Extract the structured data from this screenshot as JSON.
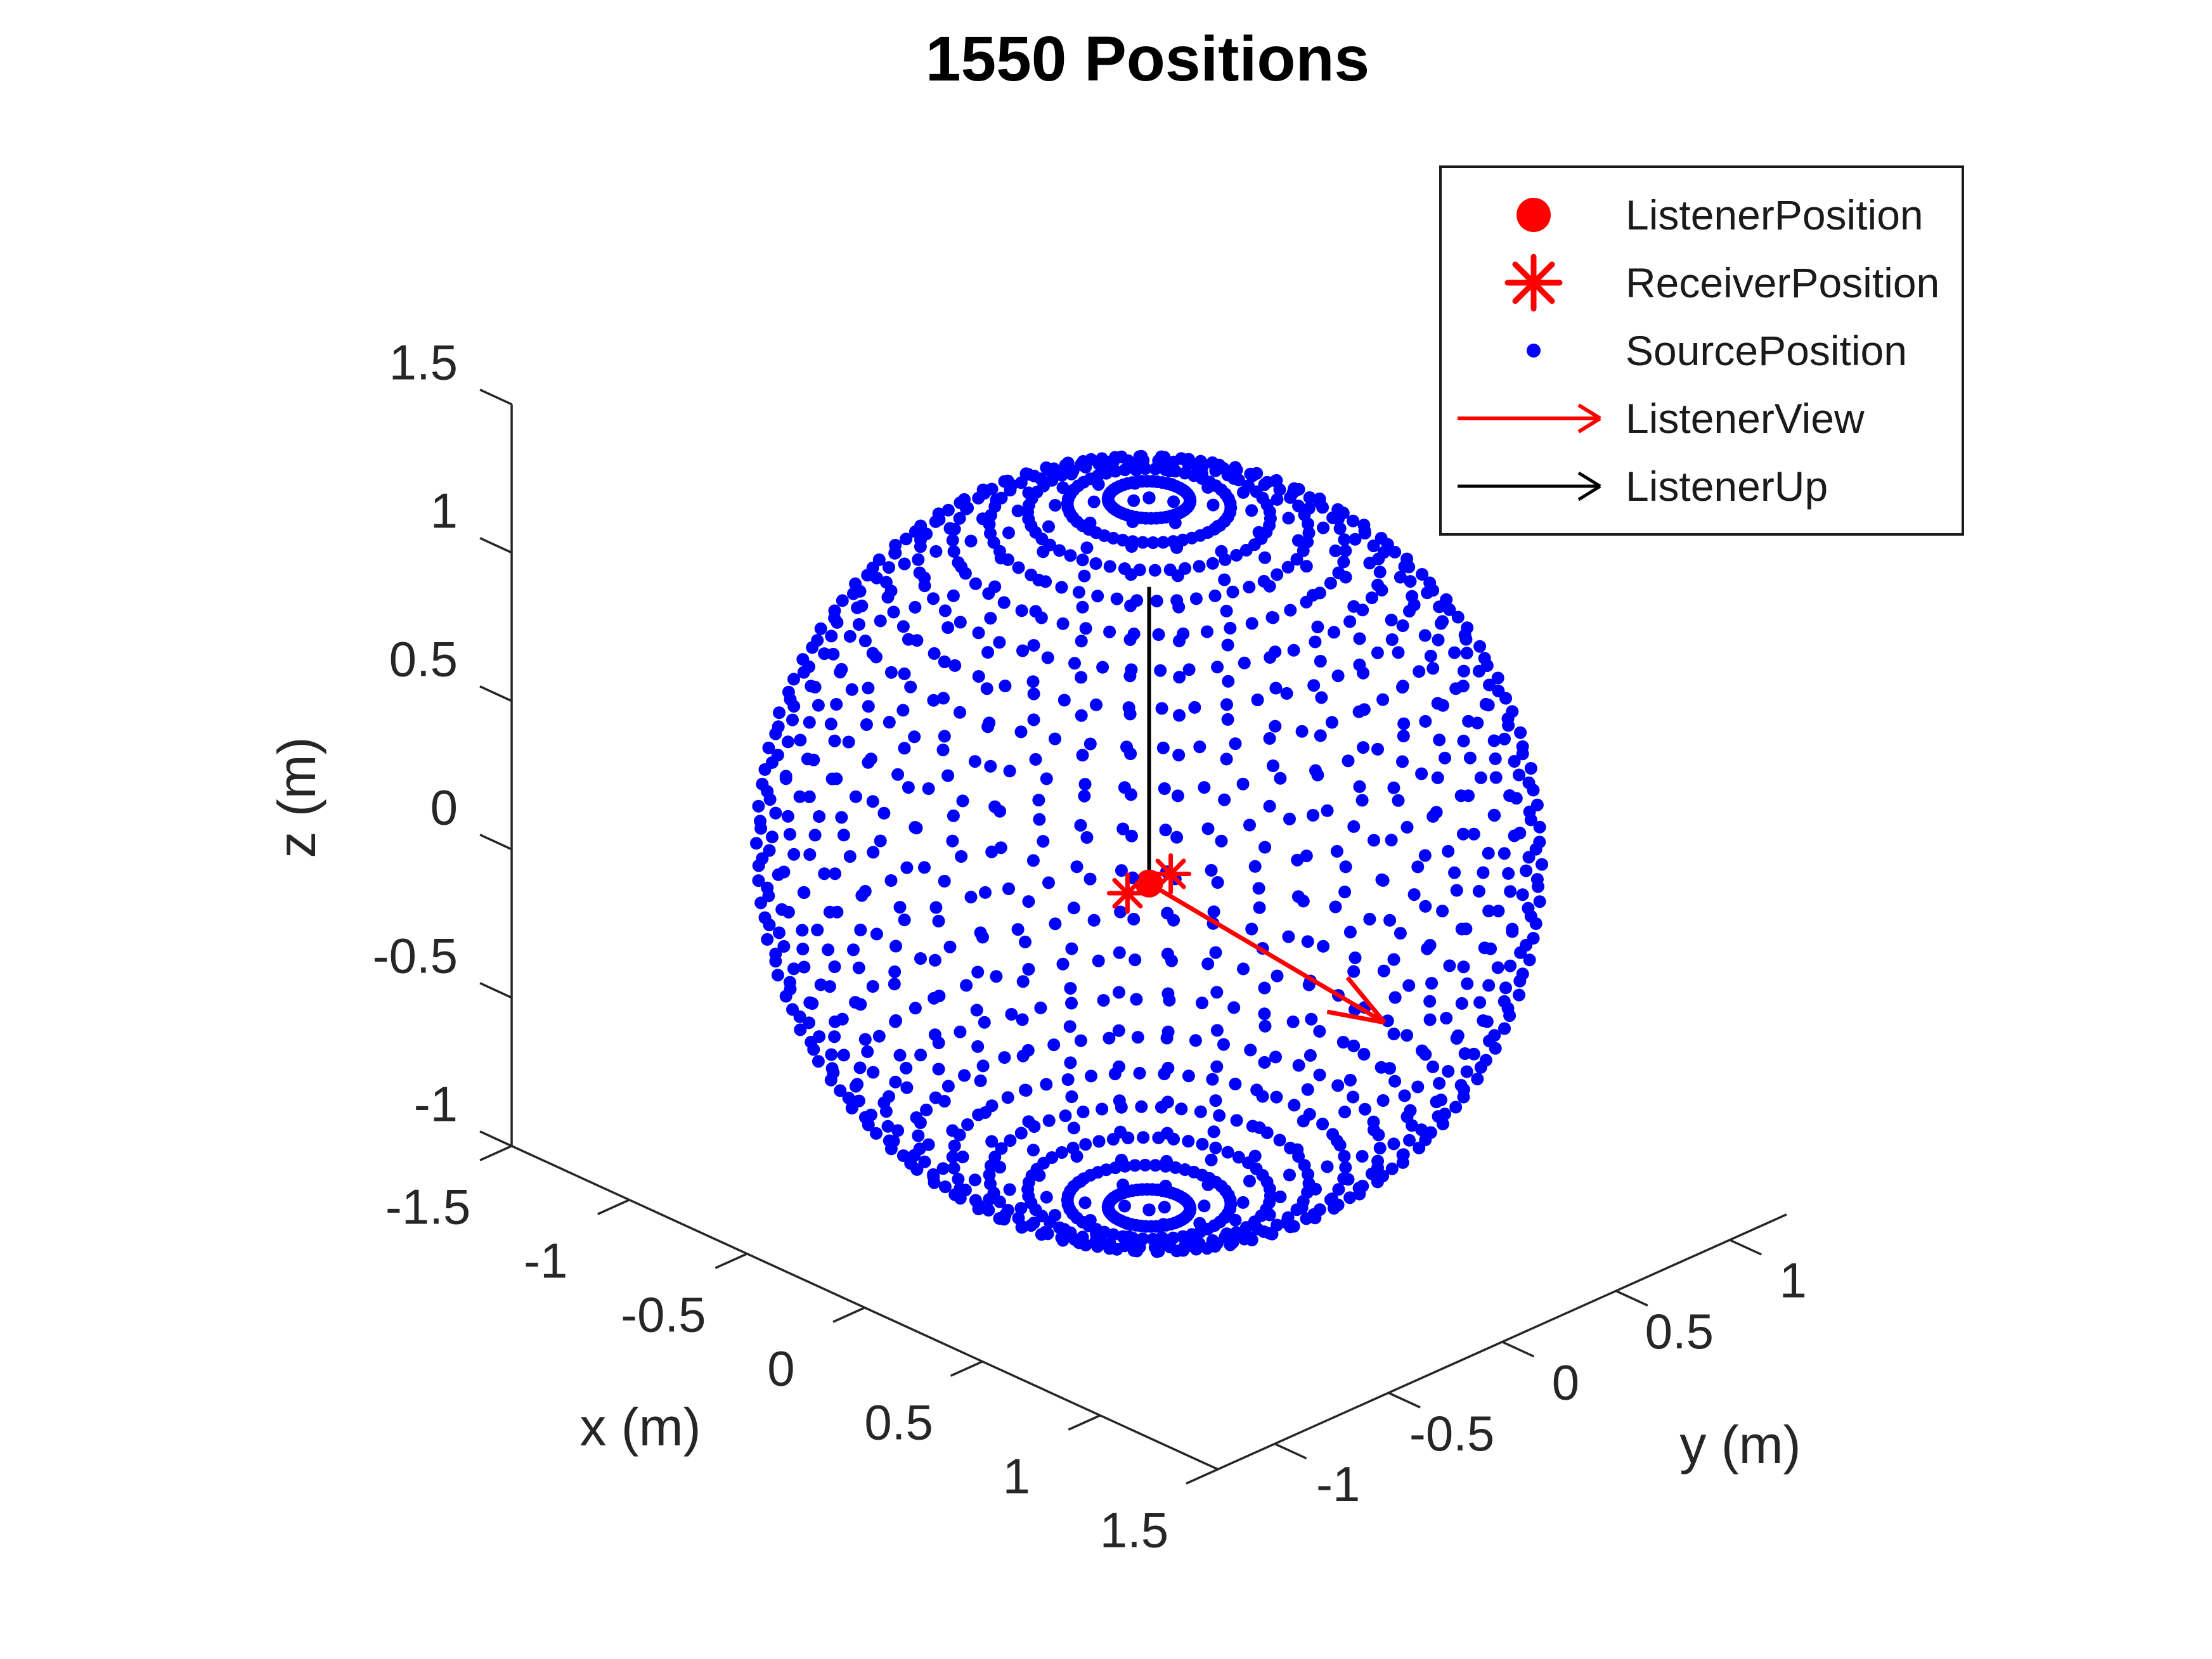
{
  "title": "1550 Positions",
  "colors": {
    "source": "#0000ff",
    "listener": "#ff0000",
    "receiver": "#ff0000",
    "view_arrow": "#ff0000",
    "up_arrow": "#000000",
    "axis": "#262626",
    "background": "#ffffff"
  },
  "chart_data": {
    "type": "scatter",
    "projection": "3d",
    "title": "1550 Positions",
    "grid": false,
    "legend_position": "top-right",
    "axes": {
      "x": {
        "label": "x (m)",
        "range": [
          -1.5,
          1.5
        ],
        "ticks": [
          -1.5,
          -1,
          -0.5,
          0,
          0.5,
          1,
          1.5
        ]
      },
      "y": {
        "label": "y (m)",
        "range": [
          -1.25,
          1.25
        ],
        "ticks": [
          -1,
          -0.5,
          0,
          0.5,
          1
        ]
      },
      "z": {
        "label": "z (m)",
        "range": [
          -1,
          1.5
        ],
        "ticks": [
          1.5,
          1,
          0.5,
          0,
          -0.5,
          -1
        ]
      }
    },
    "legend": {
      "items": [
        {
          "label": "ListenerPosition",
          "marker": "filled-circle",
          "color": "#ff0000"
        },
        {
          "label": "ReceiverPosition",
          "marker": "asterisk",
          "color": "#ff0000"
        },
        {
          "label": "SourcePosition",
          "marker": "dot",
          "color": "#0000ff"
        },
        {
          "label": "ListenerView",
          "marker": "arrow",
          "color": "#ff0000"
        },
        {
          "label": "ListenerUp",
          "marker": "arrow",
          "color": "#000000"
        }
      ]
    },
    "series": {
      "source_positions": {
        "count": 1550,
        "arrangement": "sphere-grid",
        "radius_m": 1.2,
        "center_m": [
          0,
          0,
          0.1
        ],
        "elevation_rings": 31,
        "points_per_ring": 50,
        "color": "#0000ff",
        "marker": "dot"
      },
      "listener_position": {
        "xyz_m": [
          0,
          0,
          0
        ],
        "color": "#ff0000",
        "marker": "filled-circle"
      },
      "receiver_positions": {
        "points_m": [
          [
            0,
            0.095,
            0
          ],
          [
            0,
            -0.095,
            0
          ]
        ],
        "color": "#ff0000",
        "marker": "asterisk"
      },
      "listener_view": {
        "from_m": [
          0,
          0,
          0
        ],
        "to_m": [
          1,
          0,
          -0.105
        ],
        "color": "#ff0000"
      },
      "listener_up": {
        "from_m": [
          0,
          0,
          0
        ],
        "to_m": [
          0,
          0,
          1
        ],
        "color": "#000000"
      }
    }
  }
}
